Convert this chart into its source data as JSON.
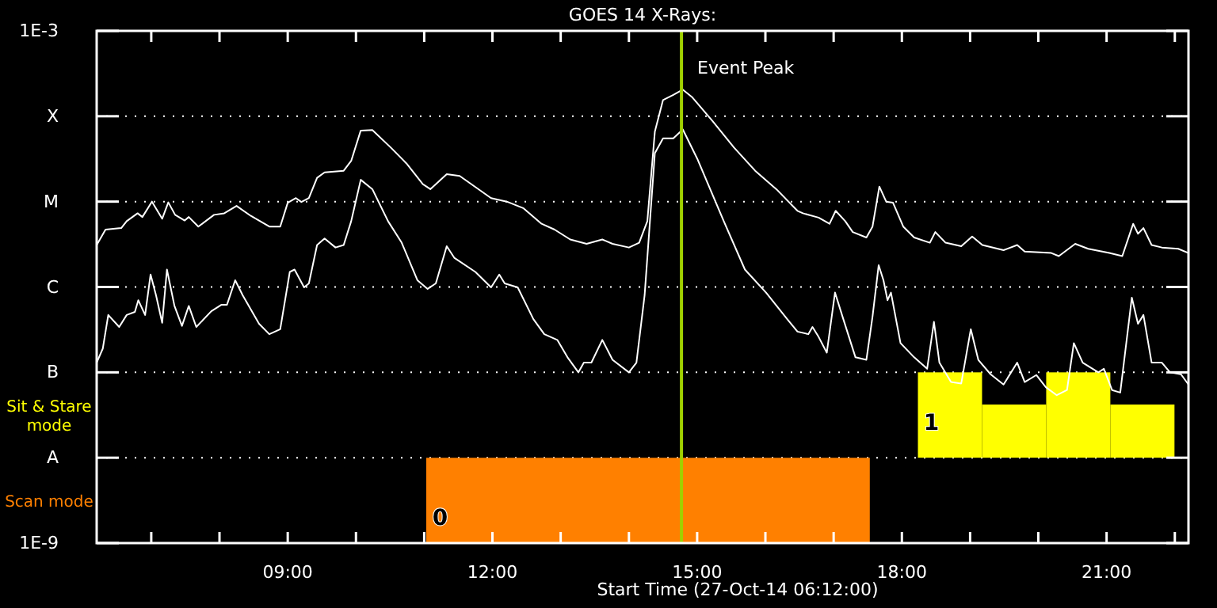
{
  "chart_data": {
    "type": "line",
    "title": "GOES 14 X-Rays:",
    "xlabel": "Start Time (27-Oct-14 06:12:00)",
    "log": "y",
    "grid": "y",
    "xlim": [
      6.2,
      22.2
    ],
    "xticks": [
      {
        "value": 7,
        "label": null
      },
      {
        "value": 8,
        "label": null
      },
      {
        "value": 9,
        "label": "09:00"
      },
      {
        "value": 10,
        "label": null
      },
      {
        "value": 11,
        "label": null
      },
      {
        "value": 12,
        "label": "12:00"
      },
      {
        "value": 13,
        "label": null
      },
      {
        "value": 14,
        "label": null
      },
      {
        "value": 15,
        "label": "15:00"
      },
      {
        "value": 16,
        "label": null
      },
      {
        "value": 17,
        "label": null
      },
      {
        "value": 18,
        "label": "18:00"
      },
      {
        "value": 19,
        "label": null
      },
      {
        "value": 20,
        "label": null
      },
      {
        "value": 21,
        "label": "21:00"
      },
      {
        "value": 22,
        "label": null
      }
    ],
    "ylim": [
      1e-09,
      0.001
    ],
    "yticks": [
      {
        "value": 1e-09,
        "label": "1E-9"
      },
      {
        "value": 1e-08,
        "label": "A"
      },
      {
        "value": 1e-07,
        "label": "B"
      },
      {
        "value": 1e-06,
        "label": "C"
      },
      {
        "value": 1e-05,
        "label": "M"
      },
      {
        "value": 0.0001,
        "label": "X"
      },
      {
        "value": 0.001,
        "label": "1E-3"
      }
    ],
    "ref_lines": [
      {
        "axis": "x",
        "value": 14.77,
        "label": "Event Peak",
        "color": "#a0d000"
      }
    ],
    "annotations": [
      {
        "text": "1",
        "x": 18.32,
        "y": 2.1e-08
      },
      {
        "text": "0",
        "x": 11.12,
        "y": 1.63e-09
      }
    ],
    "series": [
      {
        "name": "Sit & Stare mode",
        "type": "bar",
        "color": "#ffff00",
        "x": [
          18.705,
          19.645,
          20.585,
          21.525
        ],
        "base": [
          1e-08,
          1e-08,
          1e-08,
          1e-08
        ],
        "values": [
          9e-08,
          3.2e-08,
          9e-08,
          3.2e-08
        ]
      },
      {
        "name": "Scan mode",
        "type": "area",
        "color": "#ff8000",
        "x": [
          11.03,
          17.53
        ],
        "values": [
          1e-08,
          1e-08
        ]
      },
      {
        "color": "#ffffff",
        "x": [
          6.2,
          6.33,
          6.56,
          6.64,
          6.8,
          6.87,
          7.01,
          7.16,
          7.25,
          7.35,
          7.49,
          7.55,
          7.69,
          7.92,
          8.07,
          8.25,
          8.46,
          8.73,
          8.89,
          9.0,
          9.12,
          9.2,
          9.31,
          9.43,
          9.54,
          9.82,
          9.93,
          10.07,
          10.24,
          10.51,
          10.74,
          10.98,
          11.09,
          11.33,
          11.52,
          11.98,
          12.21,
          12.45,
          12.72,
          12.91,
          13.14,
          13.38,
          13.61,
          13.76,
          14.0,
          14.15,
          14.27,
          14.38,
          14.5,
          14.65,
          14.79,
          14.93,
          15.23,
          15.54,
          15.85,
          16.16,
          16.47,
          16.55,
          16.78,
          16.94,
          17.03,
          17.17,
          17.28,
          17.48,
          17.57,
          17.67,
          17.77,
          17.87,
          18.02,
          18.18,
          18.41,
          18.49,
          18.64,
          18.87,
          19.03,
          19.18,
          19.49,
          19.69,
          19.8,
          20.19,
          20.3,
          20.54,
          20.73,
          21.04,
          21.23,
          21.39,
          21.46,
          21.54,
          21.66,
          21.81,
          22.05,
          22.2
        ],
        "values": [
          3.1e-06,
          4.7e-06,
          4.9e-06,
          5.9e-06,
          7.3e-06,
          6.6e-06,
          1e-05,
          6.3e-06,
          9.8e-06,
          7e-06,
          6e-06,
          6.6e-06,
          5.1e-06,
          7e-06,
          7.3e-06,
          8.9e-06,
          6.8e-06,
          5.1e-06,
          5.1e-06,
          9.7e-06,
          1.1e-05,
          9.9e-06,
          1.1e-05,
          1.9e-05,
          2.2e-05,
          2.3e-05,
          3e-05,
          6.8e-05,
          6.9e-05,
          4.3e-05,
          2.8e-05,
          1.6e-05,
          1.4e-05,
          2.1e-05,
          2e-05,
          1.1e-05,
          1e-05,
          8.4e-06,
          5.5e-06,
          4.7e-06,
          3.6e-06,
          3.2e-06,
          3.6e-06,
          3.2e-06,
          2.9e-06,
          3.3e-06,
          5.9e-06,
          6.6e-05,
          0.000155,
          0.000178,
          0.000205,
          0.000166,
          8.7e-05,
          4.3e-05,
          2.3e-05,
          1.4e-05,
          7.8e-06,
          7.3e-06,
          6.5e-06,
          5.5e-06,
          7.8e-06,
          5.9e-06,
          4.4e-06,
          3.8e-06,
          5.1e-06,
          1.5e-05,
          1e-05,
          9.7e-06,
          5.1e-06,
          3.8e-06,
          3.3e-06,
          4.4e-06,
          3.3e-06,
          3e-06,
          3.9e-06,
          3.1e-06,
          2.7e-06,
          3.1e-06,
          2.6e-06,
          2.5e-06,
          2.3e-06,
          3.2e-06,
          2.8e-06,
          2.5e-06,
          2.3e-06,
          5.5e-06,
          4.2e-06,
          4.9e-06,
          3.1e-06,
          2.9e-06,
          2.8e-06,
          2.5e-06
        ]
      },
      {
        "color": "#ffffff",
        "x": [
          6.2,
          6.29,
          6.37,
          6.53,
          6.64,
          6.76,
          6.81,
          6.91,
          6.99,
          7.07,
          7.16,
          7.23,
          7.34,
          7.45,
          7.55,
          7.66,
          7.88,
          8.03,
          8.11,
          8.23,
          8.34,
          8.58,
          8.73,
          8.89,
          9.03,
          9.1,
          9.24,
          9.31,
          9.43,
          9.54,
          9.7,
          9.82,
          9.93,
          10.07,
          10.24,
          10.47,
          10.67,
          10.9,
          11.05,
          11.17,
          11.33,
          11.44,
          11.75,
          11.98,
          12.1,
          12.18,
          12.37,
          12.6,
          12.76,
          12.95,
          13.1,
          13.26,
          13.34,
          13.45,
          13.61,
          13.76,
          14.0,
          14.11,
          14.23,
          14.38,
          14.5,
          14.65,
          14.79,
          15.0,
          15.39,
          15.7,
          16.01,
          16.32,
          16.47,
          16.63,
          16.69,
          16.78,
          16.9,
          17.02,
          17.13,
          17.32,
          17.48,
          17.57,
          17.66,
          17.73,
          17.79,
          17.84,
          17.98,
          18.18,
          18.37,
          18.47,
          18.55,
          18.72,
          18.87,
          19.01,
          19.12,
          19.3,
          19.49,
          19.69,
          19.8,
          19.97,
          20.11,
          20.27,
          20.42,
          20.52,
          20.65,
          20.88,
          20.96,
          21.08,
          21.2,
          21.37,
          21.46,
          21.54,
          21.66,
          21.81,
          21.93,
          22.09,
          22.2
        ],
        "values": [
          1.3e-07,
          1.9e-07,
          4.7e-07,
          3.4e-07,
          4.7e-07,
          5.1e-07,
          7e-07,
          4.7e-07,
          1.4e-06,
          8e-07,
          3.8e-07,
          1.6e-06,
          6e-07,
          3.5e-07,
          6e-07,
          3.4e-07,
          5.2e-07,
          6.2e-07,
          6.2e-07,
          1.2e-06,
          8e-07,
          3.7e-07,
          2.8e-07,
          3.2e-07,
          1.5e-06,
          1.6e-06,
          9.9e-07,
          1.1e-06,
          3.1e-06,
          3.7e-06,
          2.9e-06,
          3.1e-06,
          5.9e-06,
          1.8e-05,
          1.4e-05,
          5.9e-06,
          3.3e-06,
          1.2e-06,
          9.5e-07,
          1.1e-06,
          3e-06,
          2.2e-06,
          1.5e-06,
          9.9e-07,
          1.4e-06,
          1.1e-06,
          9.9e-07,
          4.2e-07,
          2.8e-07,
          2.4e-07,
          1.5e-07,
          1e-07,
          1.3e-07,
          1.3e-07,
          2.4e-07,
          1.4e-07,
          1e-07,
          1.3e-07,
          8e-07,
          3.7e-05,
          5.5e-05,
          5.5e-05,
          7e-05,
          3.2e-05,
          5.9e-06,
          1.6e-06,
          8.6e-07,
          4.2e-07,
          3e-07,
          2.8e-07,
          3.4e-07,
          2.6e-07,
          1.7e-07,
          8.6e-07,
          4.5e-07,
          1.5e-07,
          1.4e-07,
          4.5e-07,
          1.8e-06,
          1.2e-06,
          7e-07,
          8.6e-07,
          2.2e-07,
          1.5e-07,
          1.1e-07,
          3.9e-07,
          1.3e-07,
          7.7e-08,
          7.4e-08,
          3.2e-07,
          1.4e-07,
          9.5e-08,
          7.2e-08,
          1.3e-07,
          7.7e-08,
          9.3e-08,
          6.7e-08,
          5.4e-08,
          6.2e-08,
          2.2e-07,
          1.3e-07,
          1e-07,
          1.1e-07,
          6.2e-08,
          5.8e-08,
          7.5e-07,
          3.7e-07,
          4.7e-07,
          1.3e-07,
          1.3e-07,
          1e-07,
          9.5e-08,
          7.2e-08
        ]
      }
    ]
  }
}
